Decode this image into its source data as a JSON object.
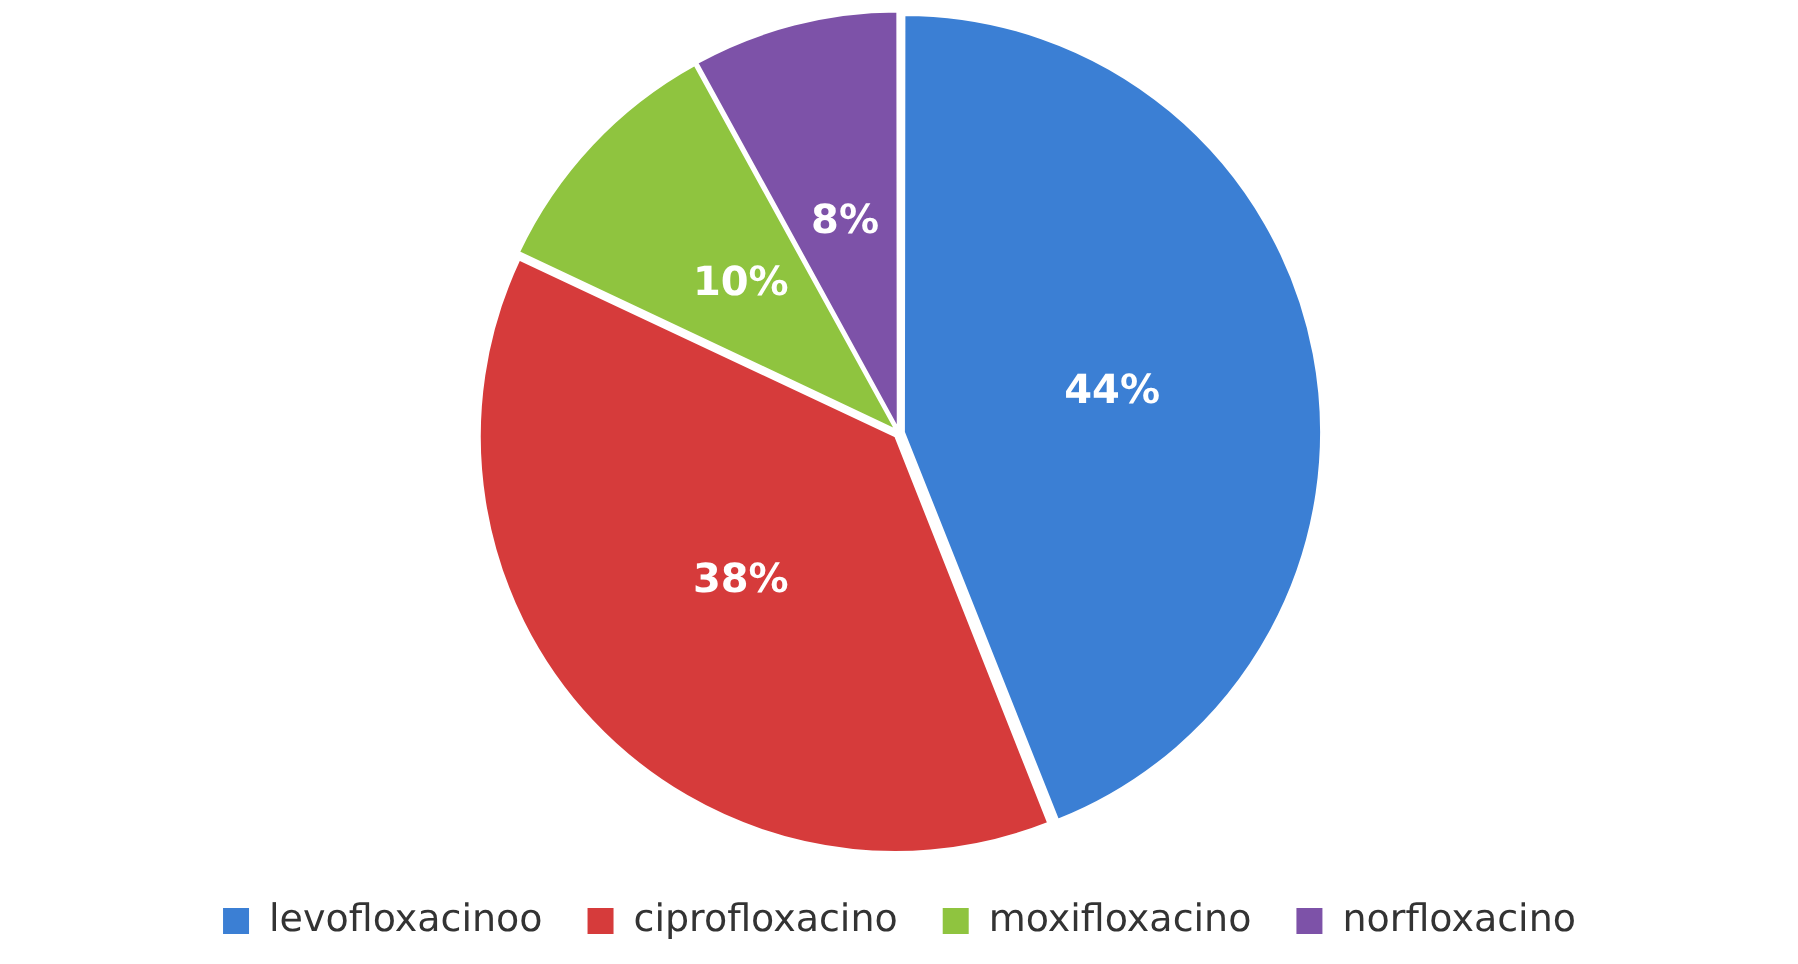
{
  "chart_data": {
    "type": "pie",
    "categories": [
      "levofloxacinoo",
      "ciprofloxacino",
      "moxifloxacino",
      "norfloxacino"
    ],
    "values": [
      44,
      38,
      10,
      8
    ],
    "colors": [
      "#3b7fd4",
      "#d63b3b",
      "#8fc43f",
      "#7d52a8"
    ],
    "value_labels": [
      "44%",
      "38%",
      "10%",
      "8%"
    ],
    "legend": "bottom"
  }
}
